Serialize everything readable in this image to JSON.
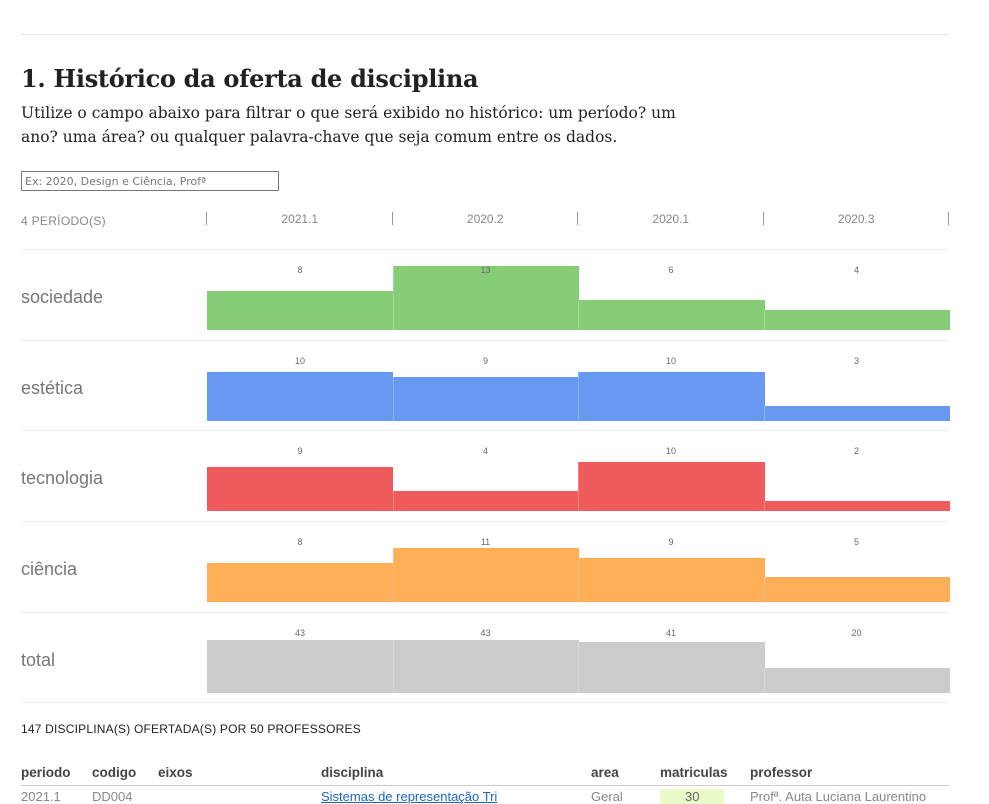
{
  "header": {
    "title": "1. Histórico da oferta de disciplina",
    "intro": "Utilize o campo abaixo para filtrar o que será exibido no histórico: um período? um ano? uma área? ou qualquer palavra-chave que seja comum entre os dados."
  },
  "filter": {
    "placeholder": "Ex: 2020, Design e Ciência, Profª",
    "value": ""
  },
  "chart_header": {
    "period_count": "4 PERÍODO(S)"
  },
  "chart_data": {
    "type": "bar",
    "categories": [
      "2021.1",
      "2020.2",
      "2020.1",
      "2020.3"
    ],
    "series": [
      {
        "name": "sociedade",
        "color": "#85cc75",
        "values": [
          8,
          13,
          6,
          4
        ]
      },
      {
        "name": "estética",
        "color": "#6799f1",
        "values": [
          10,
          9,
          10,
          3
        ]
      },
      {
        "name": "tecnologia",
        "color": "#ef5b5d",
        "values": [
          9,
          4,
          10,
          2
        ]
      },
      {
        "name": "ciência",
        "color": "#fdae57",
        "values": [
          8,
          11,
          9,
          5
        ]
      },
      {
        "name": "total",
        "color": "#cccccc",
        "values": [
          43,
          43,
          41,
          20
        ]
      }
    ]
  },
  "summary": "147 DISCIPLINA(S) OFERTADA(S) POR 50 PROFESSORES",
  "table": {
    "columns": [
      "periodo",
      "codigo",
      "eixos",
      "disciplina",
      "area",
      "matriculas",
      "professor"
    ],
    "rows": [
      [
        "2021.1",
        "DD004",
        "",
        "Sistemas de representação Tri",
        "Geral",
        "30",
        "Profª. Auta Luciana Laurentino"
      ]
    ]
  }
}
